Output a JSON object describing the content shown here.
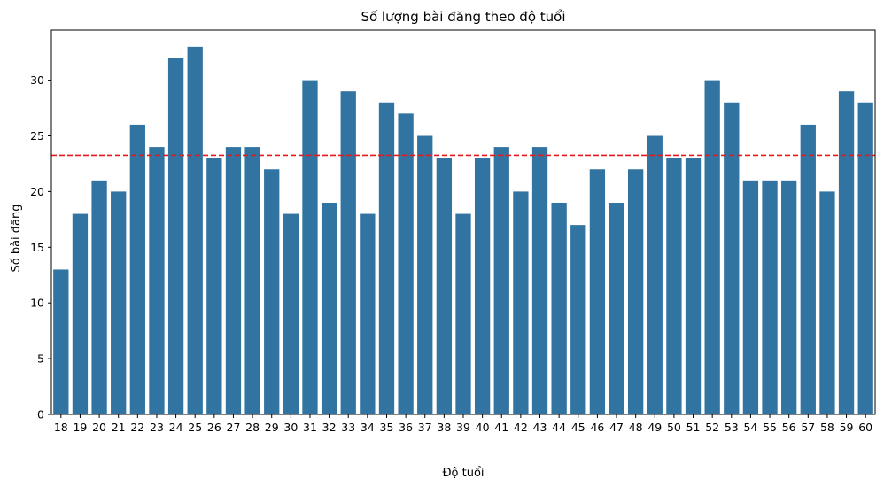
{
  "chart_data": {
    "type": "bar",
    "title": "Số lượng bài đăng theo độ tuổi",
    "xlabel": "Độ tuổi",
    "ylabel": "Số bài đăng",
    "ylim": [
      0,
      34.5
    ],
    "yticks": [
      0,
      5,
      10,
      15,
      20,
      25,
      30
    ],
    "grid": false,
    "bar_color": "#3274a1",
    "mean_line": {
      "value": 23.26,
      "color": "#e41a1c",
      "style": "dashed"
    },
    "categories": [
      "18",
      "19",
      "20",
      "21",
      "22",
      "23",
      "24",
      "25",
      "26",
      "27",
      "28",
      "29",
      "30",
      "31",
      "32",
      "33",
      "34",
      "35",
      "36",
      "37",
      "38",
      "39",
      "40",
      "41",
      "42",
      "43",
      "44",
      "45",
      "46",
      "47",
      "48",
      "49",
      "50",
      "51",
      "52",
      "53",
      "54",
      "55",
      "56",
      "57",
      "58",
      "59",
      "60"
    ],
    "values": [
      13,
      18,
      21,
      20,
      26,
      24,
      32,
      33,
      23,
      24,
      24,
      22,
      18,
      30,
      19,
      29,
      18,
      28,
      27,
      25,
      23,
      18,
      23,
      24,
      20,
      24,
      19,
      17,
      22,
      19,
      22,
      25,
      23,
      23,
      30,
      28,
      21,
      21,
      21,
      26,
      20,
      29,
      28
    ]
  }
}
